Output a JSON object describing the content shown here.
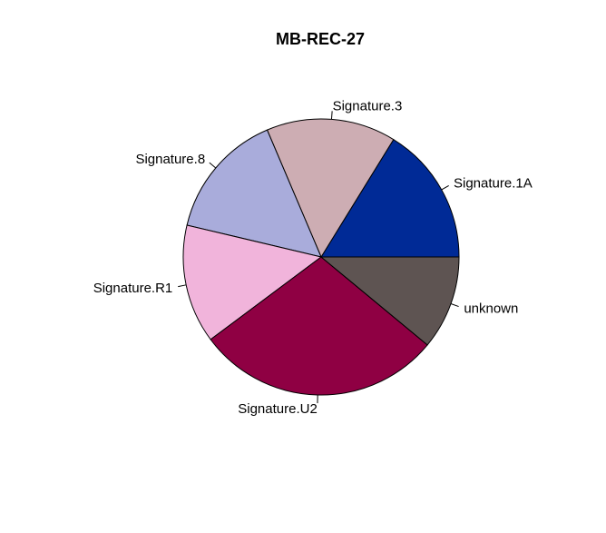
{
  "chart_data": {
    "type": "pie",
    "title": "MB-REC-27",
    "start_angle_deg": 0,
    "direction": "counterclockwise",
    "slices": [
      {
        "label": "Signature.1A",
        "value": 16.2,
        "color": "#002A96"
      },
      {
        "label": "Signature.3",
        "value": 15.2,
        "color": "#CDADB3"
      },
      {
        "label": "Signature.8",
        "value": 14.9,
        "color": "#A9ACDB"
      },
      {
        "label": "Signature.R1",
        "value": 13.9,
        "color": "#F1B4DB"
      },
      {
        "label": "Signature.U2",
        "value": 28.8,
        "color": "#8F0043"
      },
      {
        "label": "unknown",
        "value": 11.0,
        "color": "#5E5452"
      }
    ]
  }
}
